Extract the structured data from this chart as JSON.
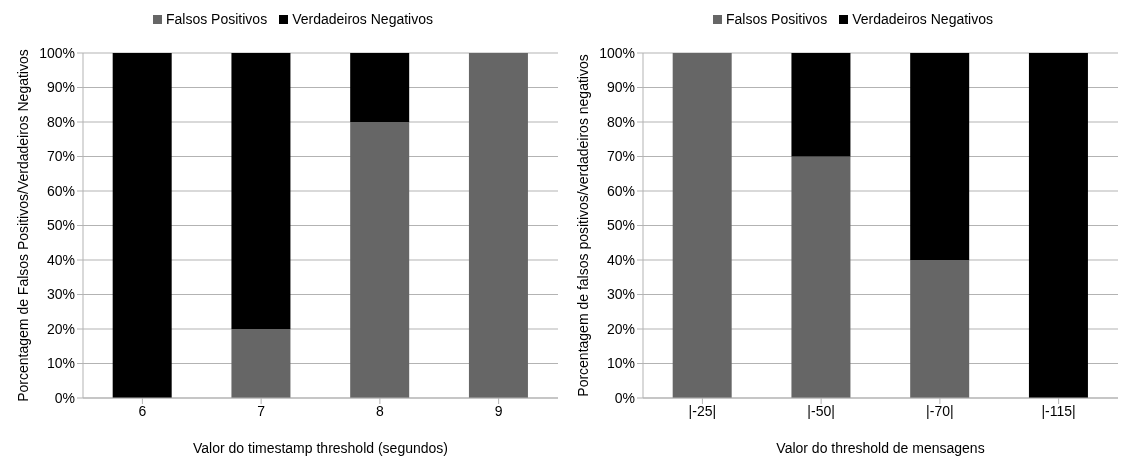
{
  "chart_data": [
    {
      "type": "bar",
      "stacked": true,
      "categories": [
        "6",
        "7",
        "8",
        "9"
      ],
      "series": [
        {
          "name": "Falsos Positivos",
          "color": "#666666",
          "values": [
            0,
            20,
            80,
            100
          ]
        },
        {
          "name": "Verdadeiros Negativos",
          "color": "#000000",
          "values": [
            100,
            80,
            20,
            0
          ]
        }
      ],
      "xlabel": "Valor do timestamp threshold (segundos)",
      "ylabel": "Porcentagem de Falsos Positivos/Verdadeiros Negativos",
      "ylim": [
        0,
        100
      ],
      "yticks": [
        {
          "value": 0,
          "label": "0%"
        },
        {
          "value": 10,
          "label": "10%"
        },
        {
          "value": 20,
          "label": "20%"
        },
        {
          "value": 30,
          "label": "30%"
        },
        {
          "value": 40,
          "label": "40%"
        },
        {
          "value": 50,
          "label": "50%"
        },
        {
          "value": 60,
          "label": "60%"
        },
        {
          "value": 70,
          "label": "70%"
        },
        {
          "value": 80,
          "label": "80%"
        },
        {
          "value": 90,
          "label": "90%"
        },
        {
          "value": 100,
          "label": "100%"
        }
      ],
      "grid": "y",
      "legend": "top"
    },
    {
      "type": "bar",
      "stacked": true,
      "categories": [
        "|-25|",
        "|-50|",
        "|-70|",
        "|-115|"
      ],
      "series": [
        {
          "name": "Falsos Positivos",
          "color": "#666666",
          "values": [
            100,
            70,
            40,
            0
          ]
        },
        {
          "name": "Verdadeiros Negativos",
          "color": "#000000",
          "values": [
            0,
            30,
            60,
            100
          ]
        }
      ],
      "xlabel": "Valor do threshold de mensagens",
      "ylabel": "Porcentagem de falsos positivos/verdadeiros negativos",
      "ylim": [
        0,
        100
      ],
      "yticks": [
        {
          "value": 0,
          "label": "0%"
        },
        {
          "value": 10,
          "label": "10%"
        },
        {
          "value": 20,
          "label": "20%"
        },
        {
          "value": 30,
          "label": "30%"
        },
        {
          "value": 40,
          "label": "40%"
        },
        {
          "value": 50,
          "label": "50%"
        },
        {
          "value": 60,
          "label": "60%"
        },
        {
          "value": 70,
          "label": "70%"
        },
        {
          "value": 80,
          "label": "80%"
        },
        {
          "value": 90,
          "label": "90%"
        },
        {
          "value": 100,
          "label": "100%"
        }
      ],
      "grid": "y",
      "legend": "top"
    }
  ]
}
